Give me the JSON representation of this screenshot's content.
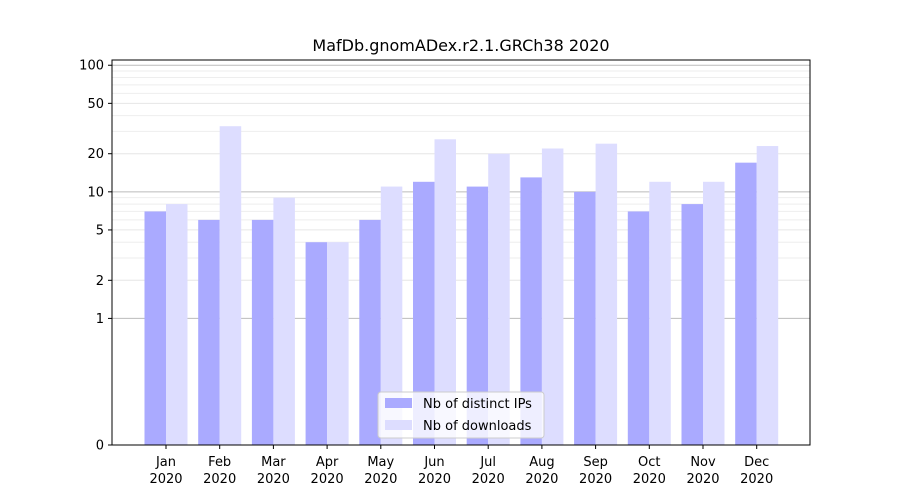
{
  "chart_data": {
    "type": "bar",
    "title": "MafDb.gnomADex.r2.1.GRCh38 2020",
    "xlabel": "",
    "ylabel": "",
    "categories": [
      {
        "month": "Jan",
        "year": "2020"
      },
      {
        "month": "Feb",
        "year": "2020"
      },
      {
        "month": "Mar",
        "year": "2020"
      },
      {
        "month": "Apr",
        "year": "2020"
      },
      {
        "month": "May",
        "year": "2020"
      },
      {
        "month": "Jun",
        "year": "2020"
      },
      {
        "month": "Jul",
        "year": "2020"
      },
      {
        "month": "Aug",
        "year": "2020"
      },
      {
        "month": "Sep",
        "year": "2020"
      },
      {
        "month": "Oct",
        "year": "2020"
      },
      {
        "month": "Nov",
        "year": "2020"
      },
      {
        "month": "Dec",
        "year": "2020"
      }
    ],
    "series": [
      {
        "name": "Nb of distinct IPs",
        "color": "#aaaaff",
        "values": [
          7,
          6,
          6,
          4,
          6,
          12,
          11,
          13,
          10,
          7,
          8,
          17
        ]
      },
      {
        "name": "Nb of downloads",
        "color": "#ddddff",
        "values": [
          8,
          33,
          9,
          4,
          11,
          26,
          20,
          22,
          24,
          12,
          12,
          23
        ]
      }
    ],
    "y_scale": "symlog",
    "ylim": [
      0,
      110
    ],
    "y_ticks": [
      {
        "value": 0,
        "label": "0"
      },
      {
        "value": 1,
        "label": "1"
      },
      {
        "value": 2,
        "label": "2"
      },
      {
        "value": 5,
        "label": "5"
      },
      {
        "value": 10,
        "label": "10"
      },
      {
        "value": 20,
        "label": "20"
      },
      {
        "value": 50,
        "label": "50"
      },
      {
        "value": 100,
        "label": "100"
      }
    ],
    "grid": true,
    "legend_position": "bottom-center"
  }
}
